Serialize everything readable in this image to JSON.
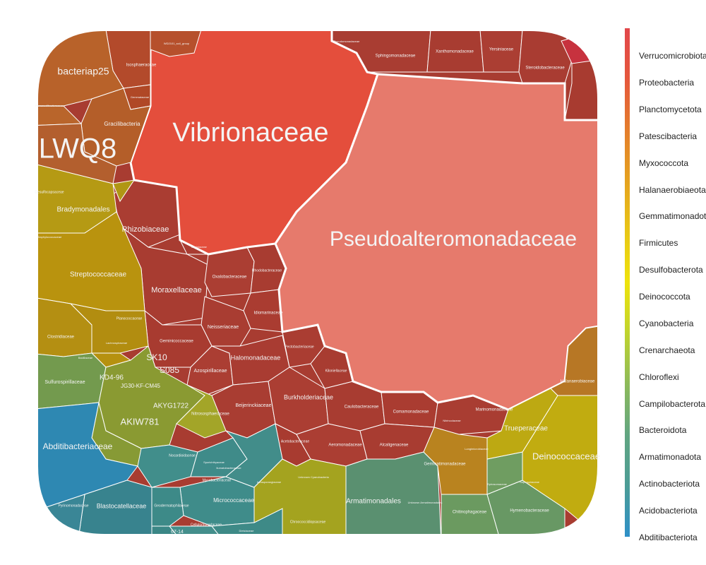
{
  "chart_data": {
    "type": "voronoi-treemap",
    "title": "",
    "legend": {
      "placement": "right",
      "entries": [
        {
          "name": "Verrucomicrobiota",
          "color": "#e2474b"
        },
        {
          "name": "Proteobacteria",
          "color": "#e5573c"
        },
        {
          "name": "Planctomycetota",
          "color": "#e56a33"
        },
        {
          "name": "Patescibacteria",
          "color": "#e47d2c"
        },
        {
          "name": "Myxococcota",
          "color": "#e28f26"
        },
        {
          "name": "Halanaerobiaeota",
          "color": "#e5a21f"
        },
        {
          "name": "Gemmatimonadota",
          "color": "#e6b51b"
        },
        {
          "name": "Firmicutes",
          "color": "#e8c616"
        },
        {
          "name": "Desulfobacterota",
          "color": "#ebd711"
        },
        {
          "name": "Deinococcota",
          "color": "#eee30c"
        },
        {
          "name": "Cyanobacteria",
          "color": "#d9df1b"
        },
        {
          "name": "Crenarchaeota",
          "color": "#bfd32e"
        },
        {
          "name": "Chloroflexi",
          "color": "#a5c543"
        },
        {
          "name": "Campilobacterota",
          "color": "#8dba5a"
        },
        {
          "name": "Bacteroidota",
          "color": "#78b06e"
        },
        {
          "name": "Armatimonadota",
          "color": "#61a581"
        },
        {
          "name": "Actinobacteriota",
          "color": "#4b9c96"
        },
        {
          "name": "Acidobacteriota",
          "color": "#3894b1"
        },
        {
          "name": "Abditibacteriota",
          "color": "#2e90c8"
        }
      ]
    },
    "labels": {
      "big": [
        "Vibrionaceae",
        "Pseudoalteromonadaceae",
        "LWQ8"
      ],
      "medium": [
        "bacteriap25",
        "Abditibacteriaceae",
        "AKIW781",
        "Deinococcaceae"
      ],
      "regular": [
        "Bradymonadales",
        "Rhizobiaceae",
        "Streptococcaceae",
        "Moraxellaceae",
        "Gracilibacteria",
        "Sulfurospirillaceae",
        "Halomonadaceae",
        "Burkholderiaceae",
        "Blastocatellaceae",
        "Micrococcaceae",
        "Armatimonadales",
        "Trueperaceae",
        "SK10",
        "S085",
        "KD4-96",
        "JG30-KF-CM45",
        "AKYG1722"
      ],
      "small": [
        "Isosphaeraceae",
        "Sphingomonadaceae",
        "Xanthomonadaceae",
        "Yersiniaceae",
        "Steroidobacteraceae",
        "Oxalobacteraceae",
        "Idiomarinaceae",
        "Neisseriaceae",
        "Geminicoccaceae",
        "Azospirillaceae",
        "Beijerinckiaceae",
        "Caulobacteraceae",
        "Comamonadaceae",
        "Marinomonadaceae",
        "Aeromonadaceae",
        "Alcaligenaceae",
        "Acetobacteraceae",
        "Gemmatimonadaceae",
        "Chitinophagaceae",
        "Hymenobacteraceae",
        "Nitrososphaeraceae",
        "Clostridiaceae",
        "Planococcaceae",
        "Halanaerobiaceae",
        "Pyrinomonadaceae",
        "Geodermatophilaceae",
        "Chroococcidiopsaceae",
        "Kiloniellaceae",
        "Pectobacteriaceae",
        "Rhodobacteraceae",
        "Nocardioidaceae",
        "Mycobacteriaceae",
        "Cellulomonadaceae",
        "67-14"
      ],
      "tiny": [
        "WD2101_soil_group",
        "Gemmataceae",
        "Desulfocapsaceae",
        "Staphylococcaceae",
        "Paracaedibacteraceae",
        "Sporichthyaceae",
        "Longimicrobiaceae",
        "Nitrincolaceae",
        "Spirosomaceae",
        "Unknown Cyanobacteria",
        "Unknown Armatimonadales",
        "Pseudomonadaceae",
        "Erwiniaceae",
        "Lachnospiraceae",
        "Bacillaceae",
        "Saprospiraceae",
        "Ilumatobacteraceae",
        "Dietziaceae",
        "Intrasporangiaceae"
      ]
    }
  }
}
